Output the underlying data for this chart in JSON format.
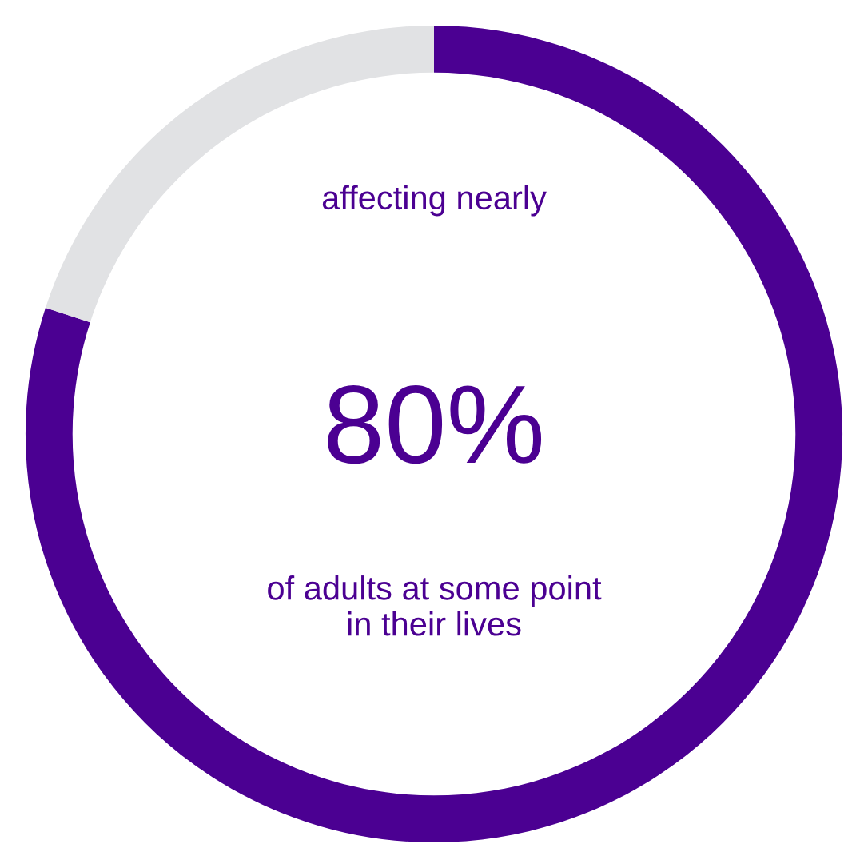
{
  "chart_data": {
    "type": "donut",
    "categories": [
      null,
      null
    ],
    "values": [
      80,
      20
    ],
    "colors": [
      "#4b0092",
      "#e1e2e4"
    ],
    "annotations": [
      "affecting nearly",
      "80%",
      "of adults at some point\nin their lives"
    ]
  }
}
